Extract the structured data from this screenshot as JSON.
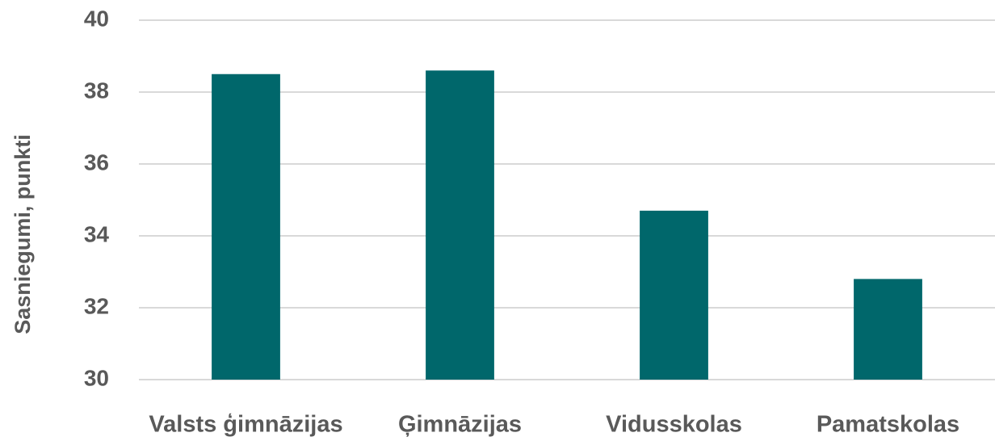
{
  "chart_data": {
    "type": "bar",
    "y_label": "Sasniegumi, punkti",
    "categories": [
      "Valsts ģimnāzijas",
      "Ģimnāzijas",
      "Vidusskolas",
      "Pamatskolas"
    ],
    "values": [
      38.5,
      38.6,
      34.7,
      32.8
    ],
    "color": "#00676b",
    "ylim": [
      30,
      40
    ],
    "yticks": [
      30,
      32,
      34,
      36,
      38,
      40
    ],
    "grid": true
  }
}
